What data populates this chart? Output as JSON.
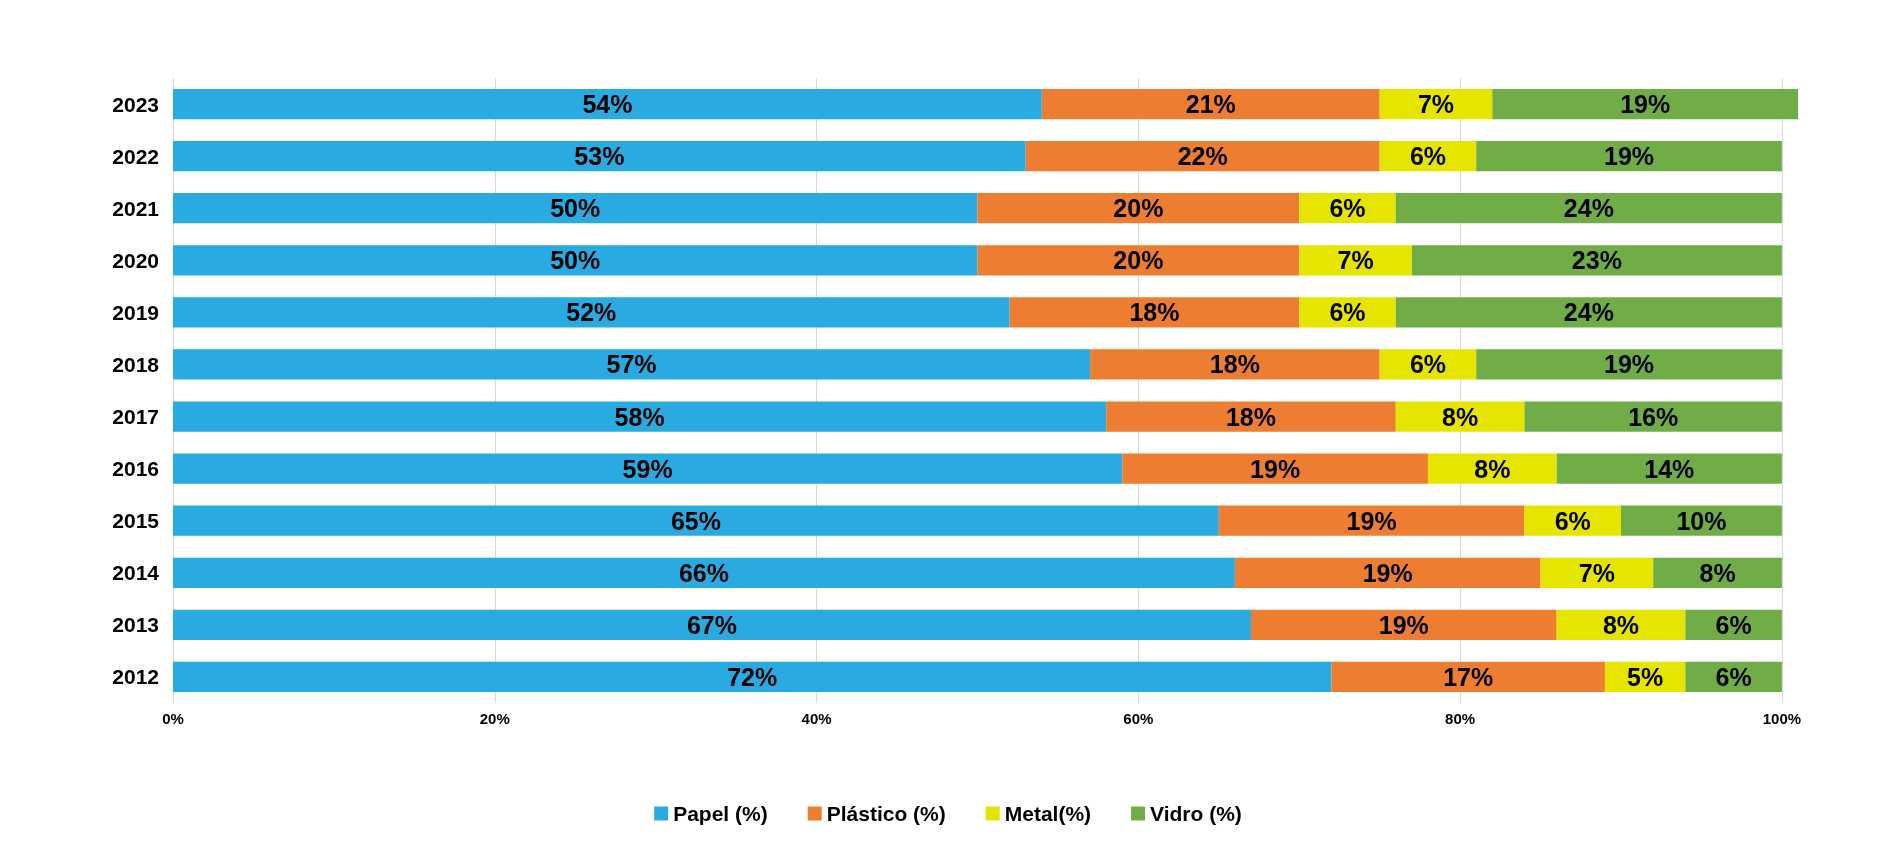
{
  "chart_data": {
    "type": "bar",
    "orientation": "horizontal",
    "stacked": true,
    "grid": "x",
    "legend": "bottom",
    "categories": [
      "2023",
      "2022",
      "2021",
      "2020",
      "2019",
      "2018",
      "2017",
      "2016",
      "2015",
      "2014",
      "2013",
      "2012"
    ],
    "series": [
      {
        "name": "Papel (%)",
        "color": "#29abe2",
        "values": [
          54,
          53,
          50,
          50,
          52,
          57,
          58,
          59,
          65,
          66,
          67,
          72
        ],
        "value_labels": [
          "54%",
          "53%",
          "50%",
          "50%",
          "52%",
          "57%",
          "58%",
          "59%",
          "65%",
          "66%",
          "67%",
          "72%"
        ]
      },
      {
        "name": "Plástico (%)",
        "color": "#ed7d31",
        "values": [
          21,
          22,
          20,
          20,
          18,
          18,
          18,
          19,
          19,
          19,
          19,
          17
        ],
        "value_labels": [
          "21%",
          "22%",
          "20%",
          "20%",
          "18%",
          "18%",
          "18%",
          "19%",
          "19%",
          "19%",
          "19%",
          "17%"
        ]
      },
      {
        "name": "Metal(%)",
        "color": "#e5e500",
        "values": [
          7,
          6,
          6,
          7,
          6,
          6,
          8,
          8,
          6,
          7,
          8,
          5
        ],
        "value_labels": [
          "7%",
          "6%",
          "6%",
          "7%",
          "6%",
          "6%",
          "8%",
          "8%",
          "6%",
          "7%",
          "8%",
          "5%"
        ]
      },
      {
        "name": "Vidro (%)",
        "color": "#70ad47",
        "values": [
          19,
          19,
          24,
          23,
          24,
          19,
          16,
          14,
          10,
          8,
          6,
          6
        ],
        "value_labels": [
          "19%",
          "19%",
          "24%",
          "23%",
          "24%",
          "19%",
          "16%",
          "14%",
          "10%",
          "8%",
          "6%",
          "6%"
        ]
      }
    ],
    "xlim": [
      0,
      101
    ],
    "xticks": [
      {
        "value": 0,
        "label": "0%"
      },
      {
        "value": 20,
        "label": "20%"
      },
      {
        "value": 40,
        "label": "40%"
      },
      {
        "value": 60,
        "label": "60%"
      },
      {
        "value": 80,
        "label": "80%"
      },
      {
        "value": 100,
        "label": "100%"
      }
    ]
  }
}
